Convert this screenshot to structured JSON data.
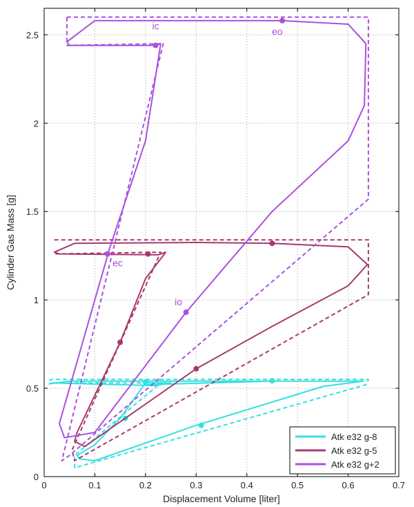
{
  "chart_data": {
    "type": "line",
    "xlabel": "Displacement Volume [liter]",
    "ylabel": "Cylinder Gas Mass [g]",
    "xlim": [
      0,
      0.7
    ],
    "ylim": [
      0,
      2.65
    ],
    "xticks": [
      "0",
      "0.1",
      "0.2",
      "0.3",
      "0.4",
      "0.5",
      "0.6",
      "0.7"
    ],
    "yticks": [
      "0",
      "0.5",
      "1",
      "1.5",
      "2",
      "2.5"
    ],
    "grid": true,
    "legend_position": "bottom-right",
    "series": [
      {
        "name": "Atk e32 g-8",
        "color": "#33e0e0",
        "solid": [
          [
            0.2,
            0.52
          ],
          [
            0.45,
            0.54
          ],
          [
            0.63,
            0.54
          ],
          [
            0.55,
            0.51
          ],
          [
            0.3,
            0.29
          ],
          [
            0.1,
            0.09
          ],
          [
            0.07,
            0.1
          ],
          [
            0.065,
            0.12
          ],
          [
            0.1,
            0.18
          ],
          [
            0.15,
            0.33
          ],
          [
            0.2,
            0.53
          ],
          [
            0.25,
            0.53
          ],
          [
            0.22,
            0.515
          ],
          [
            0.015,
            0.53
          ],
          [
            0.01,
            0.525
          ],
          [
            0.05,
            0.54
          ],
          [
            0.2,
            0.54
          ],
          [
            0.45,
            0.54
          ]
        ],
        "dashed": [
          [
            0.01,
            0.545
          ],
          [
            0.015,
            0.55
          ],
          [
            0.64,
            0.55
          ],
          [
            0.635,
            0.52
          ],
          [
            0.06,
            0.05
          ],
          [
            0.06,
            0.12
          ],
          [
            0.23,
            0.53
          ],
          [
            0.015,
            0.53
          ]
        ],
        "markers": [
          [
            0.2,
            0.535
          ],
          [
            0.45,
            0.542
          ],
          [
            0.31,
            0.29
          ],
          [
            0.16,
            0.33
          ]
        ]
      },
      {
        "name": "Atk e32 g-5",
        "color": "#a8386e",
        "solid": [
          [
            0.45,
            1.32
          ],
          [
            0.6,
            1.3
          ],
          [
            0.638,
            1.2
          ],
          [
            0.6,
            1.08
          ],
          [
            0.45,
            0.85
          ],
          [
            0.3,
            0.61
          ],
          [
            0.08,
            0.17
          ],
          [
            0.06,
            0.2
          ],
          [
            0.065,
            0.25
          ],
          [
            0.15,
            0.76
          ],
          [
            0.2,
            1.12
          ],
          [
            0.24,
            1.27
          ],
          [
            0.225,
            1.255
          ],
          [
            0.03,
            1.26
          ],
          [
            0.02,
            1.27
          ],
          [
            0.06,
            1.32
          ],
          [
            0.3,
            1.325
          ],
          [
            0.45,
            1.32
          ]
        ],
        "dashed": [
          [
            0.02,
            1.34
          ],
          [
            0.64,
            1.34
          ],
          [
            0.64,
            1.03
          ],
          [
            0.06,
            0.09
          ],
          [
            0.055,
            0.15
          ],
          [
            0.23,
            1.27
          ],
          [
            0.02,
            1.26
          ]
        ],
        "markers": [
          [
            0.45,
            1.32
          ],
          [
            0.3,
            0.61
          ],
          [
            0.15,
            0.76
          ],
          [
            0.205,
            1.26
          ]
        ]
      },
      {
        "name": "Atk e32 g+2",
        "color": "#a850e0",
        "solid": [
          [
            0.47,
            2.58
          ],
          [
            0.6,
            2.56
          ],
          [
            0.635,
            2.45
          ],
          [
            0.632,
            2.1
          ],
          [
            0.6,
            1.9
          ],
          [
            0.45,
            1.5
          ],
          [
            0.28,
            0.93
          ],
          [
            0.1,
            0.25
          ],
          [
            0.04,
            0.22
          ],
          [
            0.03,
            0.3
          ],
          [
            0.13,
            1.3
          ],
          [
            0.2,
            1.9
          ],
          [
            0.23,
            2.45
          ],
          [
            0.22,
            2.44
          ],
          [
            0.05,
            2.44
          ],
          [
            0.045,
            2.46
          ],
          [
            0.1,
            2.58
          ],
          [
            0.47,
            2.58
          ]
        ],
        "dashed": [
          [
            0.045,
            2.6
          ],
          [
            0.64,
            2.6
          ],
          [
            0.64,
            1.57
          ],
          [
            0.05,
            0.12
          ],
          [
            0.035,
            0.09
          ],
          [
            0.235,
            2.45
          ],
          [
            0.045,
            2.44
          ],
          [
            0.045,
            2.6
          ]
        ],
        "markers": [
          [
            0.47,
            2.58
          ],
          [
            0.28,
            0.93
          ],
          [
            0.125,
            1.26
          ],
          [
            0.22,
            2.44
          ]
        ]
      }
    ],
    "annotations": [
      {
        "text": "ic",
        "x": 0.22,
        "y": 2.53,
        "color": "#a850e0"
      },
      {
        "text": "eo",
        "x": 0.46,
        "y": 2.5,
        "color": "#a850e0"
      },
      {
        "text": "ec",
        "x": 0.145,
        "y": 1.19,
        "color": "#a850e0"
      },
      {
        "text": "io",
        "x": 0.265,
        "y": 0.97,
        "color": "#a850e0"
      }
    ]
  }
}
